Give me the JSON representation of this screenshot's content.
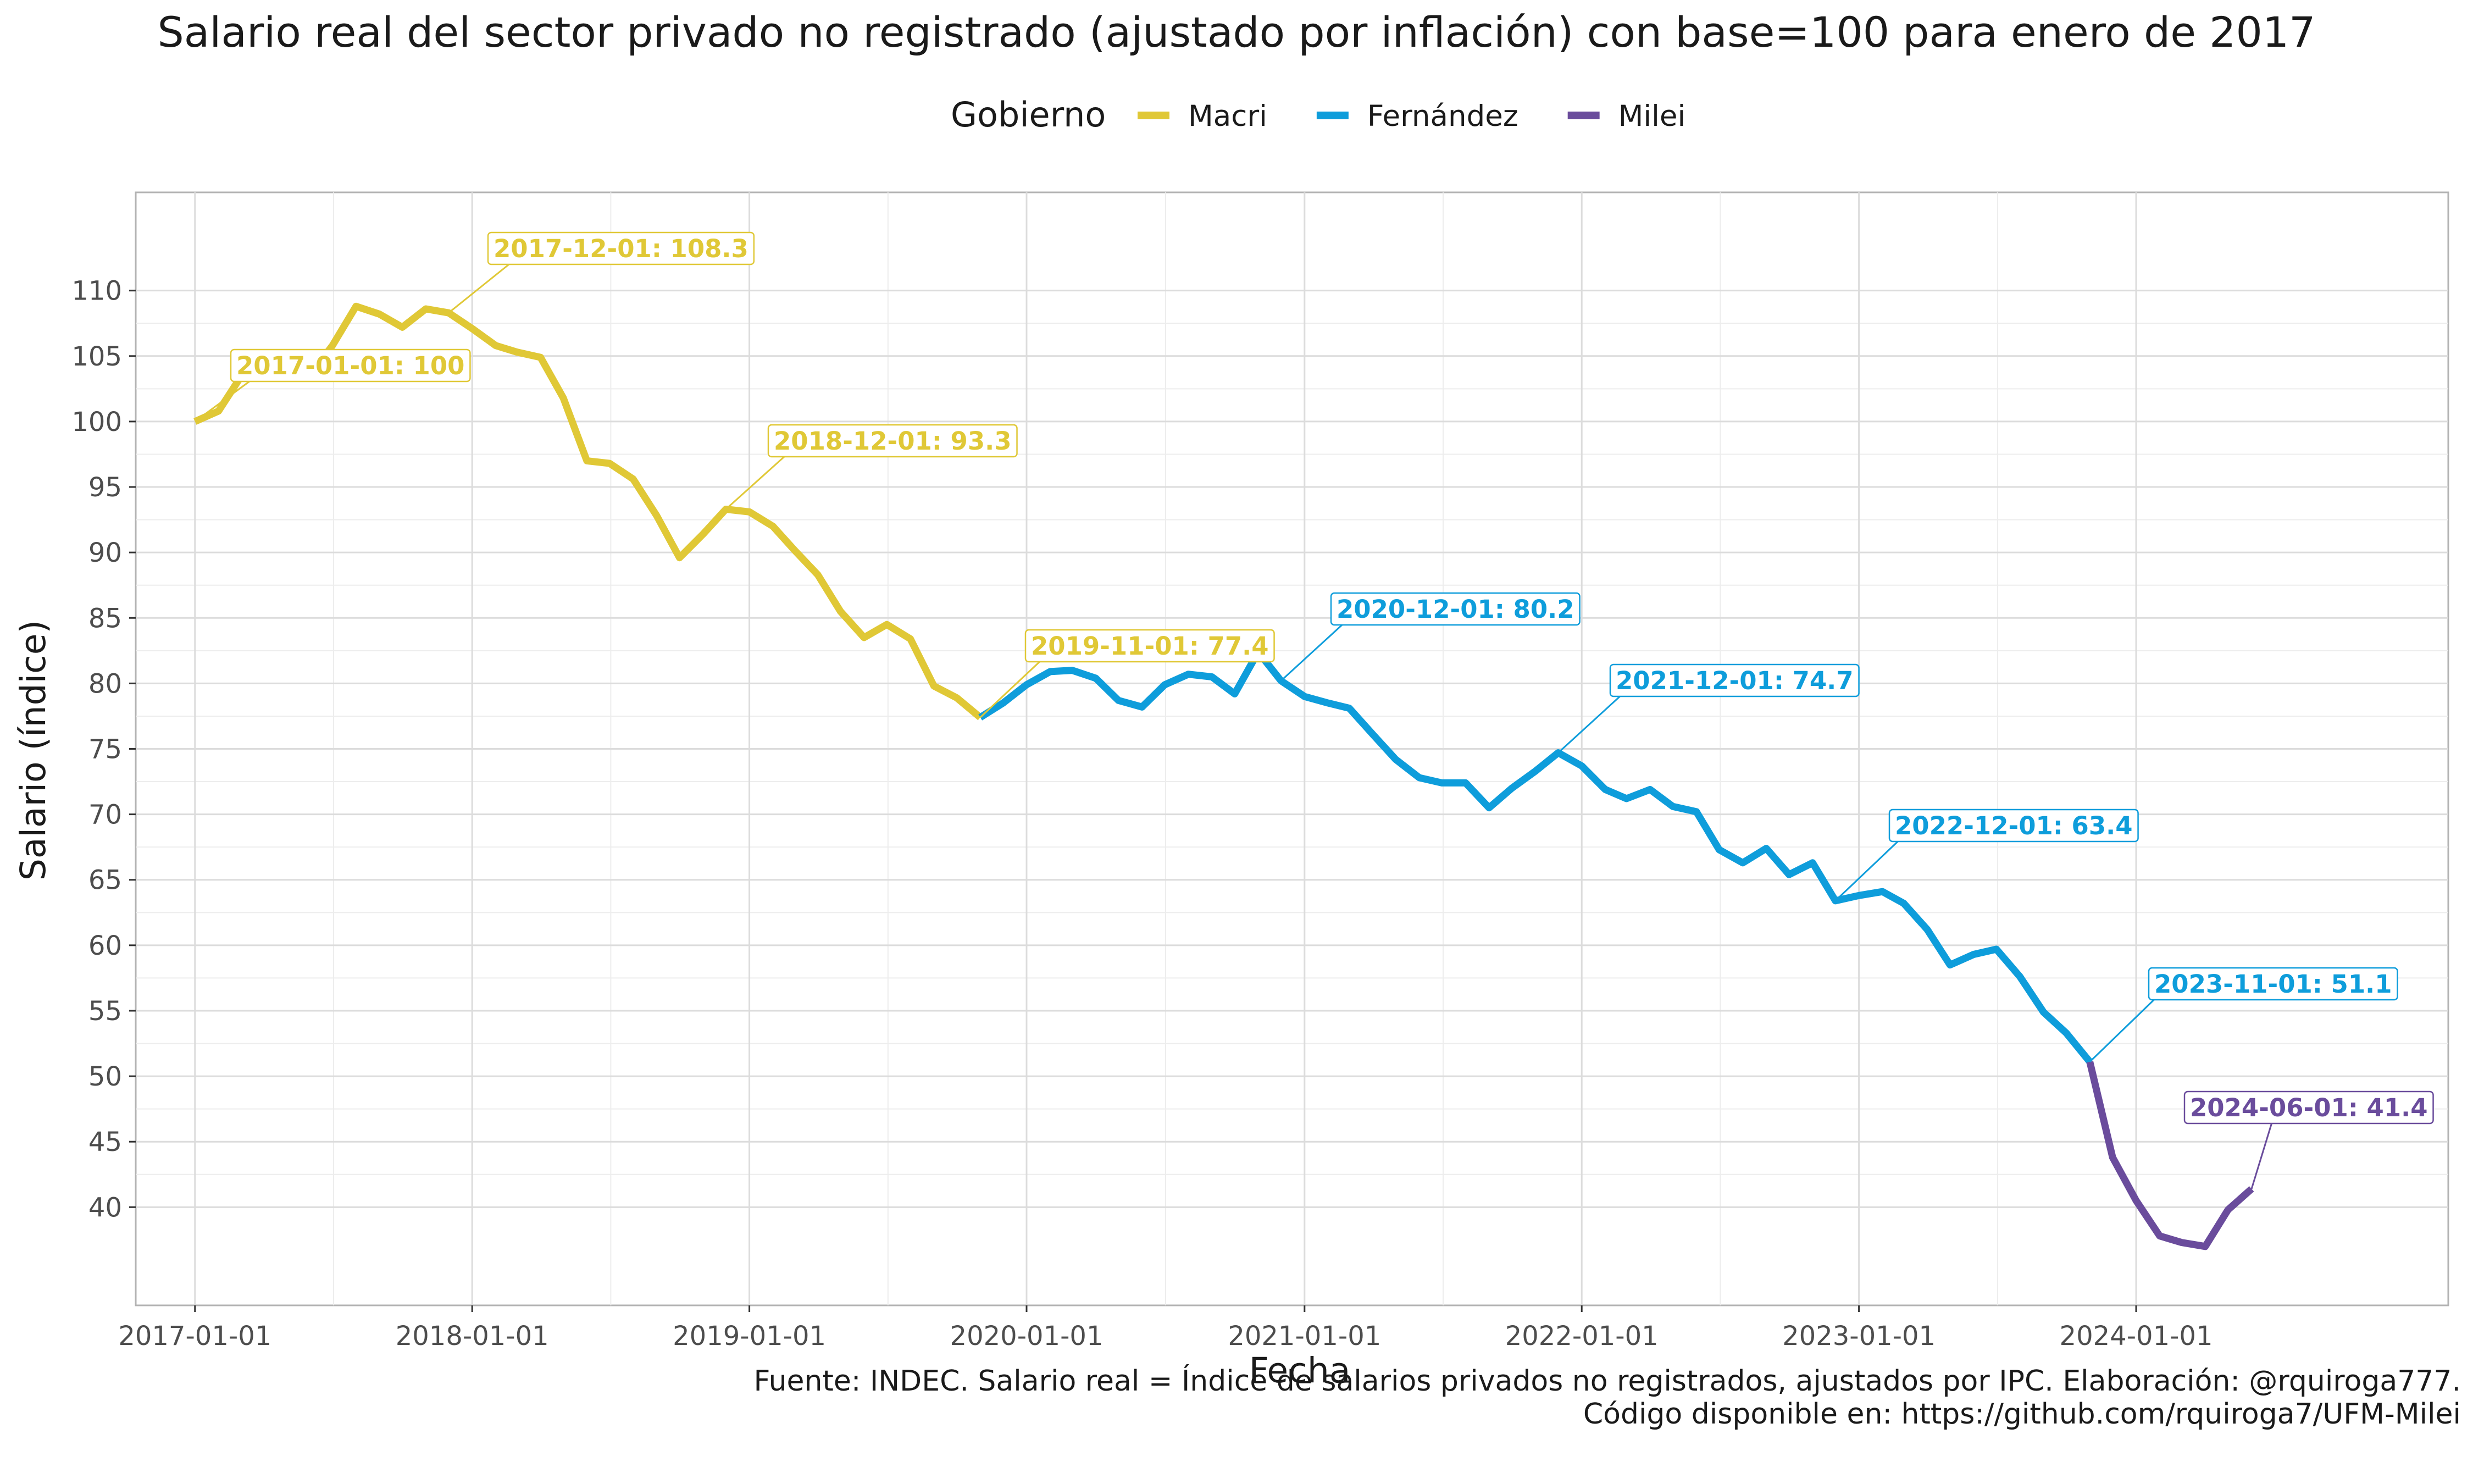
{
  "chart_data": {
    "type": "line",
    "title": "Salario real del sector privado no registrado (ajustado por inflación) con base=100 para enero de 2017",
    "xlabel": "Fecha",
    "ylabel": "Salario (índice)",
    "legend": {
      "title": "Gobierno",
      "placement": "top",
      "entries": [
        "Macri",
        "Fernández",
        "Milei"
      ]
    },
    "colors": {
      "Macri": "#e0c836",
      "Fernández": "#0e9ddb",
      "Milei": "#6a4c9c"
    },
    "grid": true,
    "xlim": [
      "2016-10-15",
      "2025-02-15"
    ],
    "ylim": [
      32.5,
      117.5
    ],
    "y_ticks": [
      40,
      45,
      50,
      55,
      60,
      65,
      70,
      75,
      80,
      85,
      90,
      95,
      100,
      105,
      110
    ],
    "x_ticks": [
      "2017-01-01",
      "2018-01-01",
      "2019-01-01",
      "2020-01-01",
      "2021-01-01",
      "2022-01-01",
      "2023-01-01",
      "2024-01-01"
    ],
    "series": [
      {
        "name": "Macri",
        "points": [
          [
            "2017-01-01",
            100.0
          ],
          [
            "2017-02-01",
            100.8
          ],
          [
            "2017-03-01",
            103.3
          ],
          [
            "2017-04-01",
            104.8
          ],
          [
            "2017-05-01",
            104.3
          ],
          [
            "2017-06-01",
            103.5
          ],
          [
            "2017-07-01",
            105.8
          ],
          [
            "2017-08-01",
            108.8
          ],
          [
            "2017-09-01",
            108.2
          ],
          [
            "2017-10-01",
            107.2
          ],
          [
            "2017-11-01",
            108.6
          ],
          [
            "2017-12-01",
            108.3
          ],
          [
            "2018-01-01",
            107.1
          ],
          [
            "2018-02-01",
            105.8
          ],
          [
            "2018-03-01",
            105.3
          ],
          [
            "2018-04-01",
            104.9
          ],
          [
            "2018-05-01",
            101.8
          ],
          [
            "2018-06-01",
            97.0
          ],
          [
            "2018-07-01",
            96.8
          ],
          [
            "2018-08-01",
            95.6
          ],
          [
            "2018-09-01",
            92.8
          ],
          [
            "2018-10-01",
            89.6
          ],
          [
            "2018-11-01",
            91.4
          ],
          [
            "2018-12-01",
            93.3
          ],
          [
            "2019-01-01",
            93.1
          ],
          [
            "2019-02-01",
            92.0
          ],
          [
            "2019-03-01",
            90.2
          ],
          [
            "2019-04-01",
            88.3
          ],
          [
            "2019-05-01",
            85.5
          ],
          [
            "2019-06-01",
            83.5
          ],
          [
            "2019-07-01",
            84.5
          ],
          [
            "2019-08-01",
            83.4
          ],
          [
            "2019-09-01",
            79.8
          ],
          [
            "2019-10-01",
            78.9
          ],
          [
            "2019-11-01",
            77.4
          ]
        ]
      },
      {
        "name": "Fernández",
        "points": [
          [
            "2019-11-01",
            77.4
          ],
          [
            "2019-12-01",
            78.5
          ],
          [
            "2020-01-01",
            79.9
          ],
          [
            "2020-02-01",
            80.9
          ],
          [
            "2020-03-01",
            81.0
          ],
          [
            "2020-04-01",
            80.4
          ],
          [
            "2020-05-01",
            78.7
          ],
          [
            "2020-06-01",
            78.2
          ],
          [
            "2020-07-01",
            79.9
          ],
          [
            "2020-08-01",
            80.7
          ],
          [
            "2020-09-01",
            80.5
          ],
          [
            "2020-10-01",
            79.2
          ],
          [
            "2020-11-01",
            82.4
          ],
          [
            "2020-12-01",
            80.2
          ],
          [
            "2021-01-01",
            79.0
          ],
          [
            "2021-02-01",
            78.5
          ],
          [
            "2021-03-01",
            78.1
          ],
          [
            "2021-04-01",
            76.1
          ],
          [
            "2021-05-01",
            74.2
          ],
          [
            "2021-06-01",
            72.8
          ],
          [
            "2021-07-01",
            72.4
          ],
          [
            "2021-08-01",
            72.4
          ],
          [
            "2021-09-01",
            70.5
          ],
          [
            "2021-10-01",
            72.0
          ],
          [
            "2021-11-01",
            73.3
          ],
          [
            "2021-12-01",
            74.7
          ],
          [
            "2022-01-01",
            73.7
          ],
          [
            "2022-02-01",
            71.9
          ],
          [
            "2022-03-01",
            71.2
          ],
          [
            "2022-04-01",
            71.9
          ],
          [
            "2022-05-01",
            70.6
          ],
          [
            "2022-06-01",
            70.2
          ],
          [
            "2022-07-01",
            67.3
          ],
          [
            "2022-08-01",
            66.3
          ],
          [
            "2022-09-01",
            67.4
          ],
          [
            "2022-10-01",
            65.4
          ],
          [
            "2022-11-01",
            66.3
          ],
          [
            "2022-12-01",
            63.4
          ],
          [
            "2023-01-01",
            63.8
          ],
          [
            "2023-02-01",
            64.1
          ],
          [
            "2023-03-01",
            63.2
          ],
          [
            "2023-04-01",
            61.2
          ],
          [
            "2023-05-01",
            58.5
          ],
          [
            "2023-06-01",
            59.3
          ],
          [
            "2023-07-01",
            59.7
          ],
          [
            "2023-08-01",
            57.6
          ],
          [
            "2023-09-01",
            54.9
          ],
          [
            "2023-10-01",
            53.3
          ],
          [
            "2023-11-01",
            51.1
          ]
        ]
      },
      {
        "name": "Milei",
        "points": [
          [
            "2023-11-01",
            51.1
          ],
          [
            "2023-12-01",
            43.8
          ],
          [
            "2024-01-01",
            40.5
          ],
          [
            "2024-02-01",
            37.8
          ],
          [
            "2024-03-01",
            37.3
          ],
          [
            "2024-04-01",
            37.0
          ],
          [
            "2024-05-01",
            39.8
          ],
          [
            "2024-06-01",
            41.4
          ]
        ]
      }
    ],
    "annotations": [
      {
        "date": "2017-01-01",
        "value": 100,
        "text": "2017-01-01: 100",
        "series": "Macri"
      },
      {
        "date": "2017-12-01",
        "value": 108.3,
        "text": "2017-12-01: 108.3",
        "series": "Macri"
      },
      {
        "date": "2018-12-01",
        "value": 93.3,
        "text": "2018-12-01: 93.3",
        "series": "Macri"
      },
      {
        "date": "2019-11-01",
        "value": 77.4,
        "text": "2019-11-01: 77.4",
        "series": "Macri"
      },
      {
        "date": "2020-12-01",
        "value": 80.2,
        "text": "2020-12-01: 80.2",
        "series": "Fernández"
      },
      {
        "date": "2021-12-01",
        "value": 74.7,
        "text": "2021-12-01: 74.7",
        "series": "Fernández"
      },
      {
        "date": "2022-12-01",
        "value": 63.4,
        "text": "2022-12-01: 63.4",
        "series": "Fernández"
      },
      {
        "date": "2023-11-01",
        "value": 51.1,
        "text": "2023-11-01: 51.1",
        "series": "Fernández"
      },
      {
        "date": "2024-06-01",
        "value": 41.4,
        "text": "2024-06-01: 41.4",
        "series": "Milei"
      }
    ],
    "caption": [
      "Fuente: INDEC. Salario real = Índice de salarios privados no registrados, ajustados por IPC. Elaboración: @rquiroga777.",
      "Código disponible en: https://github.com/rquiroga7/UFM-Milei"
    ]
  }
}
